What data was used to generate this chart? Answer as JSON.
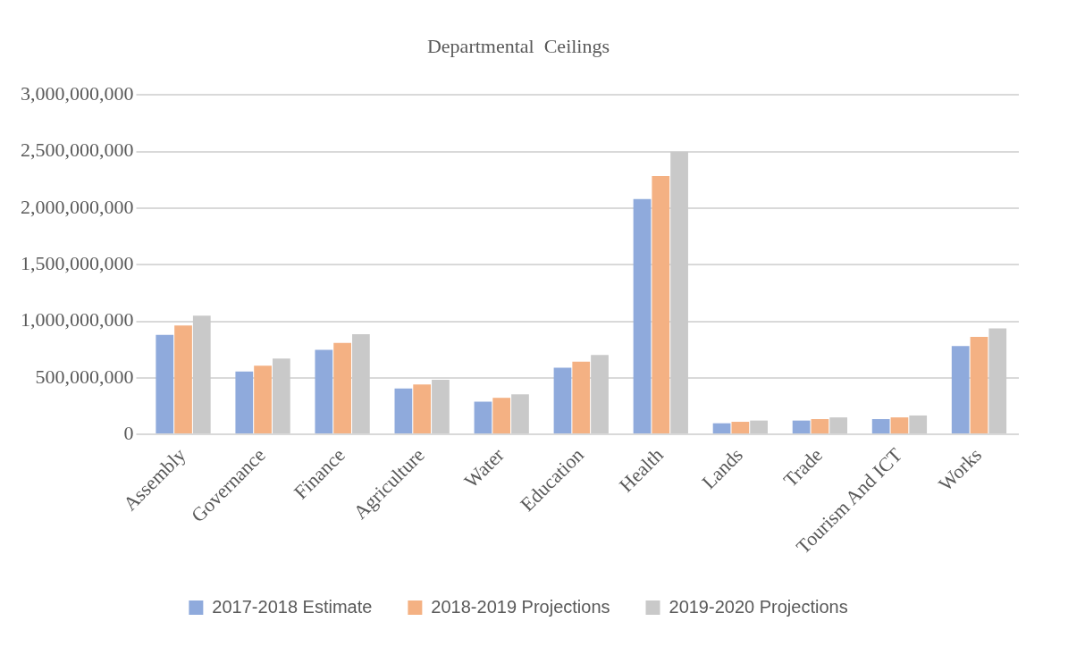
{
  "chart_data": {
    "type": "bar",
    "title": "Departmental  Ceilings",
    "categories": [
      "Assembly",
      "Governance",
      "Finance",
      "Agriculture",
      "Water",
      "Education",
      "Health",
      "Lands",
      "Trade",
      "Tourism And ICT",
      "Works"
    ],
    "series": [
      {
        "name": "2017-2018 Estimate",
        "color": "#8faadc",
        "values": [
          880000000,
          556000000,
          747000000,
          406000000,
          289000000,
          590000000,
          2080000000,
          98000000,
          122000000,
          135000000,
          781000000
        ]
      },
      {
        "name": "2018-2019 Projections",
        "color": "#f4b183",
        "values": [
          962000000,
          608000000,
          809000000,
          442000000,
          323000000,
          643000000,
          2285000000,
          111000000,
          135000000,
          150000000,
          861000000
        ]
      },
      {
        "name": "2019-2020 Projections",
        "color": "#c9c9c9",
        "values": [
          1049000000,
          671000000,
          885000000,
          483000000,
          354000000,
          702000000,
          2500000000,
          122000000,
          150000000,
          167000000,
          937000000
        ]
      }
    ],
    "ylim": [
      0,
      3000000000
    ],
    "yticks": [
      0,
      {
        "value": 500000000,
        "label": "500,000,000"
      },
      {
        "value": 1000000000,
        "label": "1,000,000,000"
      },
      {
        "value": 1500000000,
        "label": "1,500,000,000"
      },
      {
        "value": 2000000000,
        "label": "2,000,000,000"
      },
      {
        "value": 2500000000,
        "label": "2,500,000,000"
      },
      {
        "value": 3000000000,
        "label": "3,000,000,000"
      }
    ],
    "grid": "y",
    "legend": "bottom"
  }
}
